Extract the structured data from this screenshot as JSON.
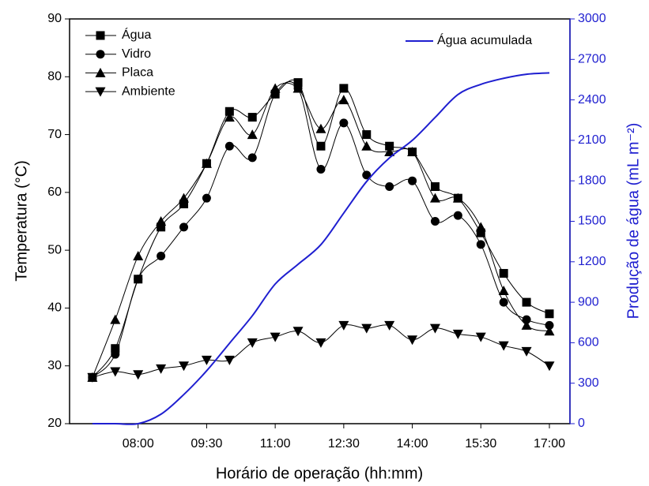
{
  "chart_data": {
    "type": "line",
    "xlabel": "Horário de operação (hh:mm)",
    "ylabel": "Temperatura (°C)",
    "y2label": "Produção de água (mL m⁻²)",
    "x": [
      7,
      7.5,
      8,
      8.5,
      9,
      9.5,
      10,
      10.5,
      11,
      11.5,
      12,
      12.5,
      13,
      13.5,
      14,
      14.5,
      15,
      15.5,
      16,
      16.5,
      17
    ],
    "xlim": [
      6.5,
      17.45
    ],
    "xticks": [
      {
        "value": 8,
        "label": "08:00"
      },
      {
        "value": 9.5,
        "label": "09:30"
      },
      {
        "value": 11,
        "label": "11:00"
      },
      {
        "value": 12.5,
        "label": "12:30"
      },
      {
        "value": 14,
        "label": "14:00"
      },
      {
        "value": 15.5,
        "label": "15:30"
      },
      {
        "value": 17,
        "label": "17:00"
      }
    ],
    "ylim": [
      20,
      90
    ],
    "yticks": [
      20,
      30,
      40,
      50,
      60,
      70,
      80,
      90
    ],
    "y2lim": [
      0,
      3000
    ],
    "y2ticks": [
      0,
      300,
      600,
      900,
      1200,
      1500,
      1800,
      2100,
      2400,
      2700,
      3000
    ],
    "series": [
      {
        "name": "Água",
        "color": "#000000",
        "marker": "square",
        "values": [
          28,
          33,
          45,
          54,
          58,
          65,
          74,
          73,
          77,
          79,
          68,
          78,
          70,
          68,
          67,
          61,
          59,
          53,
          46,
          41,
          39
        ]
      },
      {
        "name": "Vidro",
        "color": "#000000",
        "marker": "circle",
        "values": [
          28,
          32,
          45,
          49,
          54,
          59,
          68,
          66,
          77,
          78,
          64,
          72,
          63,
          61,
          62,
          55,
          56,
          51,
          41,
          38,
          37
        ]
      },
      {
        "name": "Placa",
        "color": "#000000",
        "marker": "triangle-up",
        "values": [
          28,
          38,
          49,
          55,
          59,
          65,
          73,
          70,
          78,
          78,
          71,
          76,
          68,
          67,
          67,
          59,
          59,
          54,
          43,
          37,
          36
        ]
      },
      {
        "name": "Ambiente",
        "color": "#000000",
        "marker": "triangle-down",
        "values": [
          28,
          29,
          28.5,
          29.5,
          30,
          31,
          31,
          34,
          35,
          36,
          34,
          37,
          36.5,
          37,
          34.5,
          36.5,
          35.5,
          35,
          33.5,
          32.5,
          30
        ]
      },
      {
        "name": "Água acumulada",
        "color": "#1f1fd0",
        "axis": "y2",
        "values": [
          0,
          0,
          0,
          70,
          216,
          392,
          596,
          800,
          1035,
          1181,
          1327,
          1561,
          1795,
          1970,
          2100,
          2270,
          2440,
          2515,
          2560,
          2590,
          2600
        ]
      }
    ]
  }
}
